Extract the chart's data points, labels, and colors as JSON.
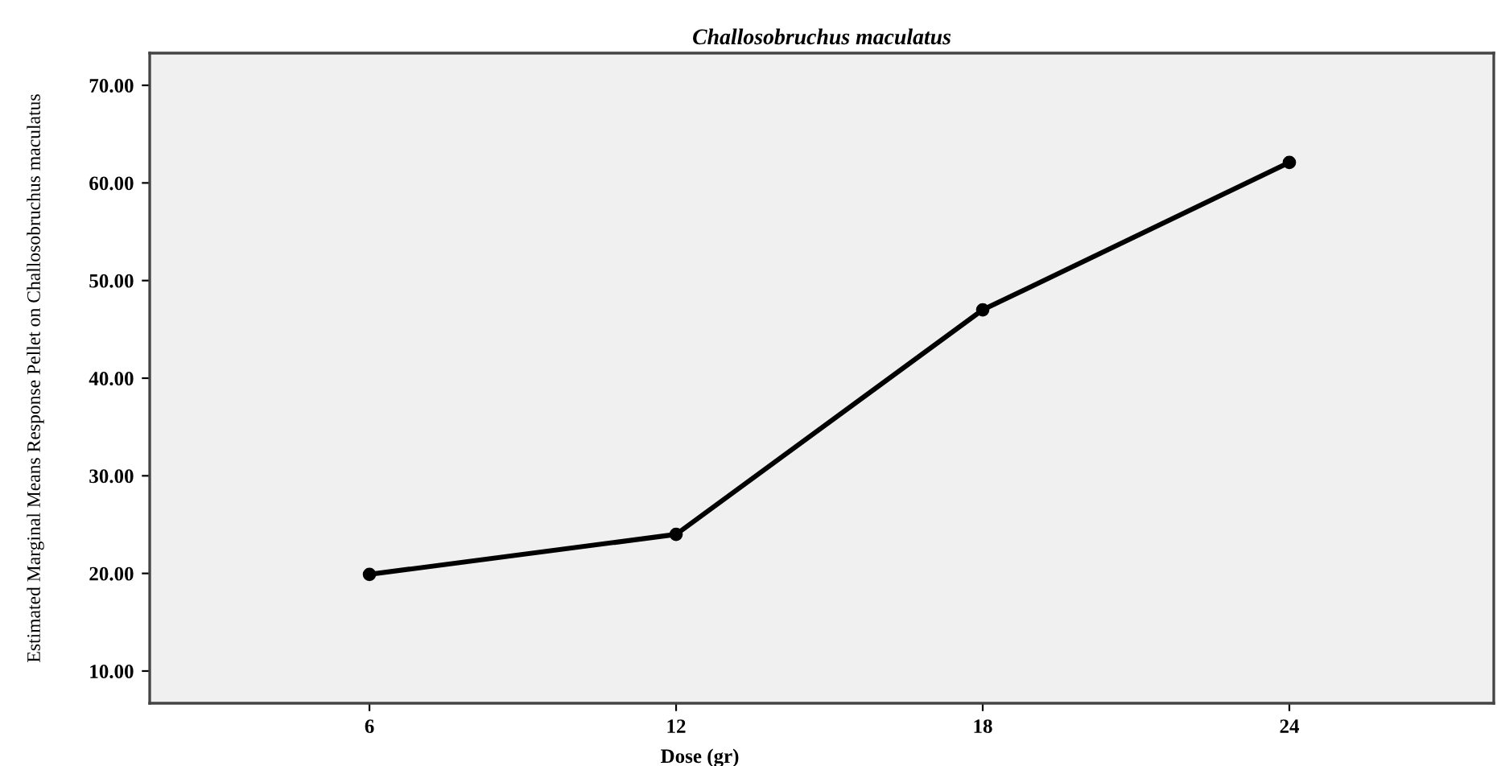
{
  "chart_data": {
    "type": "line",
    "title": "Challosobruchus maculatus",
    "xlabel": "Dose (gr)",
    "ylabel": "Estimated Marginal Means Response Pellet on Challosobruchus maculatus",
    "x": [
      6,
      12,
      18,
      24
    ],
    "series": [
      {
        "color": "#000000",
        "values": [
          19.9,
          24.0,
          47.0,
          62.1
        ]
      }
    ],
    "xlim": [
      1.7,
      28
    ],
    "xticks": [
      6,
      12,
      18,
      24
    ],
    "ylim": [
      6.7,
      73.3
    ],
    "yticks": [
      {
        "value": 10,
        "label": "10.00"
      },
      {
        "value": 20,
        "label": "20.00"
      },
      {
        "value": 30,
        "label": "30.00"
      },
      {
        "value": 40,
        "label": "40.00"
      },
      {
        "value": 50,
        "label": "50.00"
      },
      {
        "value": 60,
        "label": "60.00"
      },
      {
        "value": 70,
        "label": "70.00"
      }
    ],
    "grid": false,
    "legend": false,
    "marker": "circle",
    "line_style": "solid"
  }
}
